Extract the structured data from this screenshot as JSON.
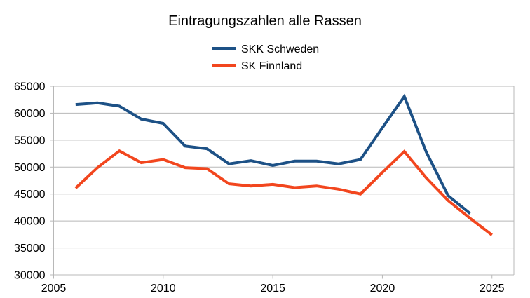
{
  "chart_data": {
    "type": "line",
    "title": "Eintragungszahlen alle Rassen",
    "x": [
      2006,
      2007,
      2008,
      2009,
      2010,
      2011,
      2012,
      2013,
      2014,
      2015,
      2016,
      2017,
      2018,
      2019,
      2020,
      2021,
      2022,
      2023,
      2024,
      2025
    ],
    "series": [
      {
        "name": "SKK Schweden",
        "color": "#1d5186",
        "values": [
          61600,
          61900,
          61300,
          58900,
          58100,
          53900,
          53400,
          50600,
          51200,
          50300,
          51100,
          51100,
          50600,
          51400,
          57300,
          63100,
          52800,
          44700,
          41400,
          null
        ]
      },
      {
        "name": "SK Finnland",
        "color": "#f2461e",
        "values": [
          46100,
          49900,
          53000,
          50800,
          51400,
          49900,
          49700,
          46900,
          46500,
          46800,
          46200,
          46500,
          45900,
          45000,
          49000,
          52900,
          48000,
          43800,
          40500,
          37400
        ]
      }
    ],
    "xlabel": "",
    "ylabel": "",
    "xlim": [
      2005,
      2026
    ],
    "ylim": [
      30000,
      65000
    ],
    "x_ticks": [
      2005,
      2010,
      2015,
      2020,
      2025
    ],
    "y_ticks": [
      30000,
      35000,
      40000,
      45000,
      50000,
      55000,
      60000,
      65000
    ],
    "grid": true,
    "legend_position": "top-center",
    "grid_color": "#b8b8b8",
    "text_color": "#000000",
    "line_width": 4
  }
}
